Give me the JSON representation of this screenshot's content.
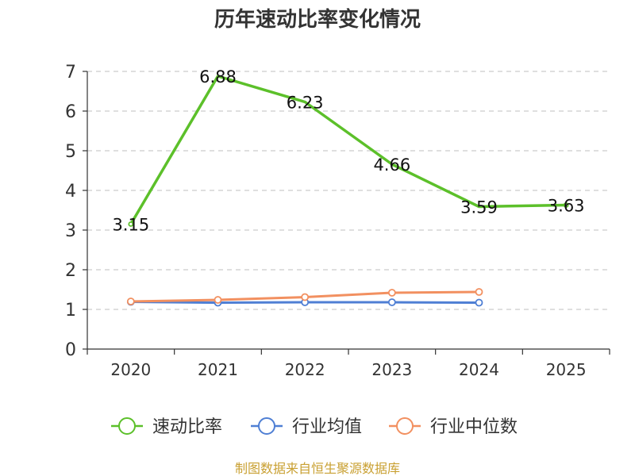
{
  "chart_data": {
    "type": "line",
    "title": "历年速动比率变化情况",
    "categories": [
      "2020",
      "2021",
      "2022",
      "2023",
      "2024",
      "2025"
    ],
    "ylim": [
      0,
      7
    ],
    "yticks": [
      0,
      1,
      2,
      3,
      4,
      5,
      6,
      7
    ],
    "grid": true,
    "legend_position": "bottom",
    "series": [
      {
        "name": "速动比率",
        "color": "#5cc02a",
        "values": [
          3.15,
          6.88,
          6.23,
          4.66,
          3.59,
          3.63
        ],
        "labels": [
          "3.15",
          "6.88",
          "6.23",
          "4.66",
          "3.59",
          "3.63"
        ],
        "show_labels": true
      },
      {
        "name": "行业均值",
        "color": "#4f7fd4",
        "values": [
          1.19,
          1.17,
          1.18,
          1.18,
          1.17,
          null
        ],
        "show_labels": false
      },
      {
        "name": "行业中位数",
        "color": "#f29060",
        "values": [
          1.2,
          1.24,
          1.31,
          1.42,
          1.44,
          null
        ],
        "show_labels": false
      }
    ]
  },
  "source_text": "制图数据来自恒生聚源数据库",
  "source_color": "#c9a032"
}
